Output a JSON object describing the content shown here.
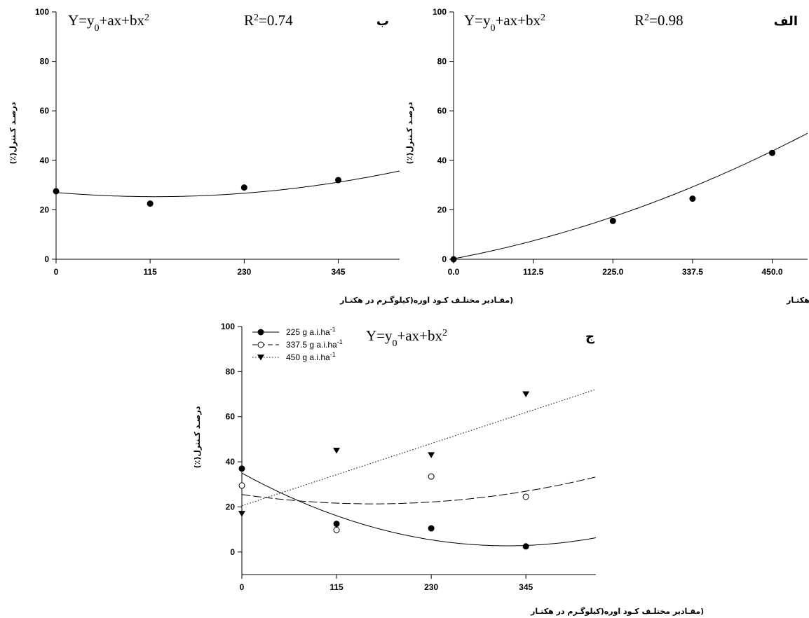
{
  "chart_data": [
    {
      "id": "alef",
      "type": "scatter",
      "panel_label": "الف",
      "equation": "Y=y0+ax+bx2",
      "r2": "R2=0.98",
      "xlabel": "(دز هـای مختلـف علـف کـش فـورام سـولفورون(گـرم مـاده مؤثـره در هکتـار",
      "ylabel": "درصـد کـنترل(٪)",
      "xlim": [
        0,
        500
      ],
      "ylim": [
        0,
        100
      ],
      "xticks": [
        0,
        112.5,
        225,
        337.5,
        450
      ],
      "xtick_labels": [
        "0.0",
        "112.5",
        "225.0",
        "337.5",
        "450.0"
      ],
      "yticks": [
        0,
        20,
        40,
        60,
        80,
        100
      ],
      "series": [
        {
          "marker": "circle-filled",
          "line": "solid",
          "x": [
            0,
            225,
            337.5,
            450
          ],
          "y": [
            0,
            15.5,
            24.5,
            43
          ],
          "fit": {
            "y0": 0.2,
            "a": 0.054,
            "b": 9.5e-05
          }
        }
      ]
    },
    {
      "id": "be",
      "type": "scatter",
      "panel_label": "ب",
      "equation": "Y=y0+ax+bx2",
      "r2": "R2=0.74",
      "xlabel": "(مقـادیر مختلـف کـود اوره(کیلوگـرم در هکتـار",
      "ylabel": "درصـد کـنترل(٪)",
      "xlim": [
        0,
        420
      ],
      "ylim": [
        0,
        100
      ],
      "xticks": [
        0,
        115,
        230,
        345
      ],
      "xtick_labels": [
        "0",
        "115",
        "230",
        "345"
      ],
      "yticks": [
        0,
        20,
        40,
        60,
        80,
        100
      ],
      "series": [
        {
          "marker": "circle-filled",
          "line": "solid",
          "x": [
            0,
            115,
            230,
            345
          ],
          "y": [
            27.5,
            22.5,
            29,
            32
          ],
          "fit": {
            "y0": 27,
            "a": -0.028,
            "b": 0.000116
          }
        }
      ]
    },
    {
      "id": "jim",
      "type": "scatter",
      "panel_label": "ج",
      "equation": "Y=y0+ax+bx2",
      "xlabel": "(مقـادیر مختلـف کـود اوره(کیلوگـرم در هکتـار",
      "ylabel": "درصـد کـنترل(٪)",
      "xlim": [
        0,
        430
      ],
      "ylim": [
        -10,
        100
      ],
      "xticks": [
        0,
        115,
        230,
        345
      ],
      "xtick_labels": [
        "0",
        "115",
        "230",
        "345"
      ],
      "yticks": [
        0,
        20,
        40,
        60,
        80,
        100
      ],
      "series": [
        {
          "name": "225 g a.i.ha",
          "name_sup": "-1",
          "marker": "circle-filled",
          "line": "solid",
          "x": [
            0,
            115,
            230,
            345
          ],
          "y": [
            37,
            12.5,
            10.5,
            2.5
          ],
          "fit": {
            "y0": 35,
            "a": -0.2,
            "b": 0.00031
          }
        },
        {
          "name": "337.5 g a.i.ha",
          "name_sup": "-1",
          "marker": "circle-open",
          "line": "dashed",
          "x": [
            0,
            115,
            230,
            345
          ],
          "y": [
            29.5,
            9.8,
            33.5,
            24.5
          ],
          "fit": {
            "y0": 25.5,
            "a": -0.052,
            "b": 0.000163
          }
        },
        {
          "name": "450 g a.i.ha",
          "name_sup": "-1",
          "marker": "triangle-down-filled",
          "line": "dotted",
          "x": [
            0,
            115,
            230,
            345
          ],
          "y": [
            17,
            45,
            43,
            70
          ],
          "fit": {
            "y0": 20.5,
            "a": 0.12,
            "b": 0
          }
        }
      ]
    }
  ]
}
